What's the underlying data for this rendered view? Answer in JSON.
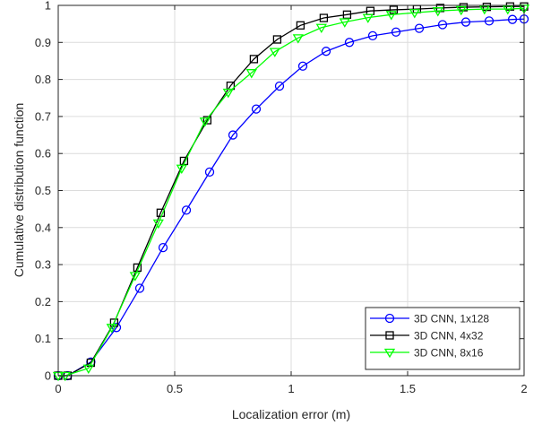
{
  "chart_data": {
    "type": "line",
    "title": "",
    "xlabel": "Localization error (m)",
    "ylabel": "Cumulative distribution function",
    "xlim": [
      0,
      2
    ],
    "ylim": [
      0,
      1
    ],
    "xticks": [
      0,
      0.5,
      1,
      1.5,
      2
    ],
    "xtick_labels": [
      "0",
      "0.5",
      "1",
      "1.5",
      "2"
    ],
    "yticks": [
      0,
      0.1,
      0.2,
      0.3,
      0.4,
      0.5,
      0.6,
      0.7,
      0.8,
      0.9,
      1
    ],
    "ytick_labels": [
      "0",
      "0.1",
      "0.2",
      "0.3",
      "0.4",
      "0.5",
      "0.6",
      "0.7",
      "0.8",
      "0.9",
      "1"
    ],
    "grid": true,
    "legend_position": "bottom-right",
    "series": [
      {
        "name": "3D CNN, 1x128",
        "color": "#0000ff",
        "marker": "circle",
        "x": [
          0,
          0.04,
          0.14,
          0.25,
          0.35,
          0.45,
          0.55,
          0.65,
          0.75,
          0.85,
          0.95,
          1.05,
          1.15,
          1.25,
          1.35,
          1.45,
          1.55,
          1.65,
          1.75,
          1.85,
          1.95,
          2.0
        ],
        "y": [
          0,
          0.0,
          0.037,
          0.13,
          0.236,
          0.346,
          0.447,
          0.55,
          0.65,
          0.72,
          0.782,
          0.836,
          0.876,
          0.9,
          0.918,
          0.928,
          0.938,
          0.948,
          0.955,
          0.958,
          0.962,
          0.963
        ]
      },
      {
        "name": "3D CNN, 4x32",
        "color": "#000000",
        "marker": "square",
        "x": [
          0,
          0.04,
          0.14,
          0.24,
          0.34,
          0.44,
          0.54,
          0.64,
          0.74,
          0.84,
          0.94,
          1.04,
          1.14,
          1.24,
          1.34,
          1.44,
          1.54,
          1.64,
          1.74,
          1.84,
          1.94,
          2.0
        ],
        "y": [
          0,
          0.0,
          0.035,
          0.143,
          0.292,
          0.44,
          0.58,
          0.69,
          0.783,
          0.855,
          0.908,
          0.946,
          0.966,
          0.975,
          0.985,
          0.988,
          0.99,
          0.993,
          0.995,
          0.996,
          0.997,
          0.997
        ]
      },
      {
        "name": "3D CNN, 8x16",
        "color": "#00ff00",
        "marker": "triangle-down",
        "x": [
          0,
          0.03,
          0.13,
          0.23,
          0.33,
          0.43,
          0.53,
          0.63,
          0.73,
          0.83,
          0.93,
          1.03,
          1.13,
          1.23,
          1.33,
          1.43,
          1.53,
          1.63,
          1.73,
          1.83,
          1.93,
          2.0
        ],
        "y": [
          0,
          0.0,
          0.02,
          0.13,
          0.27,
          0.412,
          0.56,
          0.687,
          0.765,
          0.818,
          0.875,
          0.912,
          0.94,
          0.955,
          0.967,
          0.975,
          0.98,
          0.985,
          0.988,
          0.99,
          0.99,
          0.992
        ]
      }
    ]
  }
}
